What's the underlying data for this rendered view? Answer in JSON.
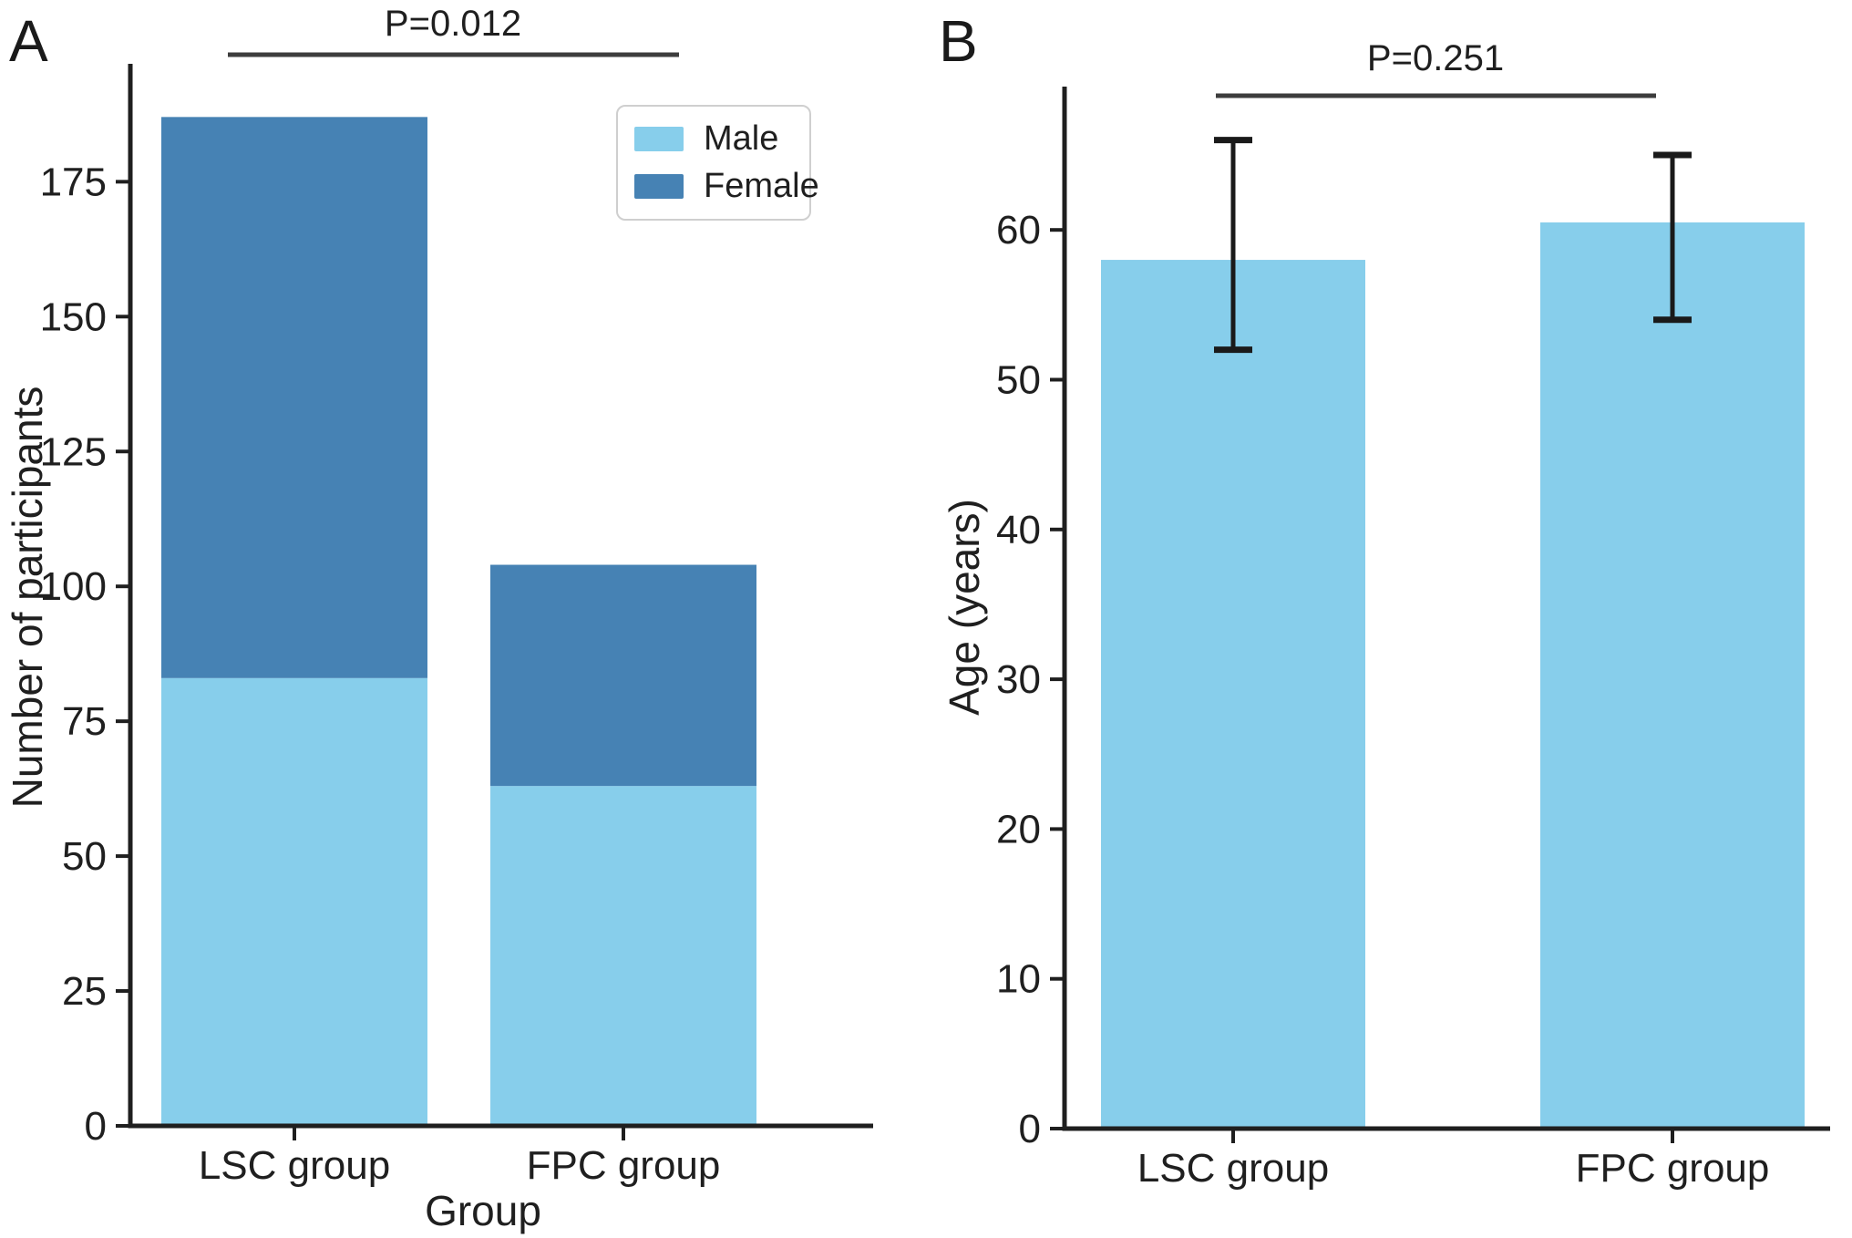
{
  "figure": {
    "panels": [
      {
        "label": "A",
        "annotation": "P=0.012",
        "ylabel": "Number of participants",
        "xlabel": "Group"
      },
      {
        "label": "B",
        "annotation": "P=0.251",
        "ylabel": "Age (years)",
        "xlabel": ""
      }
    ],
    "legend": {
      "items": [
        {
          "label": "Male",
          "color": "#87CEEB"
        },
        {
          "label": "Female",
          "color": "#4682B4"
        }
      ]
    },
    "colors": {
      "male": "#87CEEB",
      "female": "#4682B4",
      "bar": "#87CEEB",
      "axis": "#1f1f1f",
      "text": "#1f1f1f",
      "sig_line": "#3d3d3d",
      "error_bar": "#1a1a1a"
    }
  },
  "chart_data": [
    {
      "panel": "A",
      "type": "bar",
      "stacked": true,
      "categories": [
        "LSC group",
        "FPC group"
      ],
      "series": [
        {
          "name": "Male",
          "values": [
            83,
            63
          ]
        },
        {
          "name": "Female",
          "values": [
            104,
            41
          ]
        }
      ],
      "totals": [
        187,
        104
      ],
      "title": "",
      "xlabel": "Group",
      "ylabel": "Number of participants",
      "yticks": [
        0,
        25,
        50,
        75,
        100,
        125,
        150,
        175
      ],
      "ylim": [
        0,
        197
      ],
      "grid": false,
      "legend_position": "upper right",
      "annotation": "P=0.012"
    },
    {
      "panel": "B",
      "type": "bar",
      "stacked": false,
      "categories": [
        "LSC group",
        "FPC group"
      ],
      "values": [
        58,
        60.5
      ],
      "error_bars": {
        "low": [
          52,
          54
        ],
        "high": [
          66,
          65
        ]
      },
      "title": "",
      "xlabel": "",
      "ylabel": "Age (years)",
      "yticks": [
        0,
        10,
        20,
        30,
        40,
        50,
        60
      ],
      "ylim": [
        0,
        69.5
      ],
      "grid": false,
      "legend_position": "none",
      "annotation": "P=0.251"
    }
  ]
}
